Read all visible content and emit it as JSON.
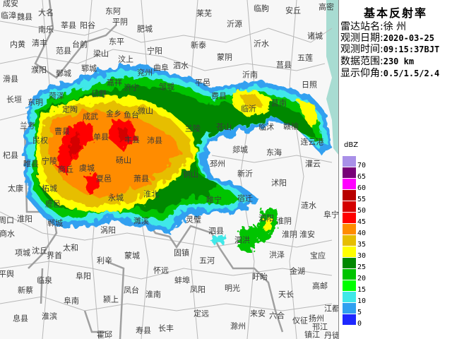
{
  "panel": {
    "title": "基本反射率",
    "station": {
      "label": "雷达站名:",
      "value": "徐 州"
    },
    "date": {
      "label": "观测日期:",
      "value": "2020-03-25"
    },
    "time": {
      "label": "观测时间:",
      "value": "09:15:37BJT"
    },
    "range": {
      "label": "数据范围:",
      "value": "230 km"
    },
    "elevation": {
      "label": "显示仰角:",
      "value": "0.5/1.5/2.4"
    }
  },
  "legend": {
    "unit": "dBZ",
    "items": [
      {
        "value": "70",
        "color": "#a990e8"
      },
      {
        "value": "65",
        "color": "#780078"
      },
      {
        "value": "60",
        "color": "#ff00ff"
      },
      {
        "value": "55",
        "color": "#b80000"
      },
      {
        "value": "50",
        "color": "#d40000"
      },
      {
        "value": "45",
        "color": "#ff0000"
      },
      {
        "value": "40",
        "color": "#ff8c00"
      },
      {
        "value": "35",
        "color": "#e6be00"
      },
      {
        "value": "30",
        "color": "#ffff00"
      },
      {
        "value": "25",
        "color": "#008800"
      },
      {
        "value": "20",
        "color": "#00c400"
      },
      {
        "value": "15",
        "color": "#00ff00"
      },
      {
        "value": "10",
        "color": "#40e8e8"
      },
      {
        "value": "5",
        "color": "#30a0f0"
      },
      {
        "value": "0",
        "color": "#1e28ff"
      }
    ]
  },
  "map": {
    "sea_color": "#a8dcd2",
    "places": [
      "成安",
      "临漳",
      "魏县",
      "大名",
      "南乐",
      "莘县",
      "阳谷",
      "东阿",
      "平阴",
      "肥城",
      "内黄",
      "清丰",
      "范县",
      "台前",
      "梁山",
      "东平",
      "宁阳",
      "滑县",
      "濮阳",
      "鄄城",
      "郓城",
      "汶上",
      "曲阜",
      "兖州",
      "长垣",
      "东明",
      "嘉祥",
      "巨野",
      "济宁",
      "菏泽",
      "定陶",
      "成武",
      "金乡",
      "鱼台",
      "微山",
      "邹城",
      "莱芜",
      "临朐",
      "安丘",
      "高密",
      "新泰",
      "沂源",
      "诸城",
      "沂水",
      "蒙阴",
      "五莲",
      "泗水",
      "莒县",
      "平邑",
      "沂南",
      "日照",
      "费县",
      "临沂",
      "莒南",
      "兰考",
      "民权",
      "曹县",
      "单县",
      "丰县",
      "沛县",
      "杞县",
      "睢县",
      "宁陵",
      "商丘",
      "虞城",
      "砀山",
      "夏邑",
      "萧县",
      "淮北",
      "太康",
      "柘城",
      "永城",
      "鹿邑",
      "淮阳",
      "郸城",
      "濉溪",
      "苍山",
      "临沭",
      "赣榆",
      "兰陵",
      "郯城",
      "连云港",
      "东海",
      "邳州",
      "新沂",
      "灌云",
      "沭阳",
      "铜山",
      "睢宁",
      "宿迁",
      "涟水",
      "阜宁",
      "泗阳",
      "淮阴",
      "灵璧",
      "周口",
      "商水",
      "项城",
      "沈丘",
      "界首",
      "太和",
      "涡阳",
      "利辛",
      "蒙城",
      "平舆",
      "临泉",
      "阜阳",
      "怀远",
      "新蔡",
      "凤台",
      "阜南",
      "颍上",
      "淮南",
      "息县",
      "淮滨",
      "霍邱",
      "寿县",
      "长丰",
      "泗县",
      "泗洪",
      "淮阴",
      "淮安",
      "固镇",
      "五河",
      "洪泽",
      "宝应",
      "蚌埠",
      "凤阳",
      "明光",
      "盱眙",
      "金湖",
      "高邮",
      "天长",
      "江都",
      "定远",
      "来安",
      "六合",
      "仪征",
      "扬州",
      "邗江",
      "滁州",
      "镇江",
      "丹徒"
    ]
  }
}
